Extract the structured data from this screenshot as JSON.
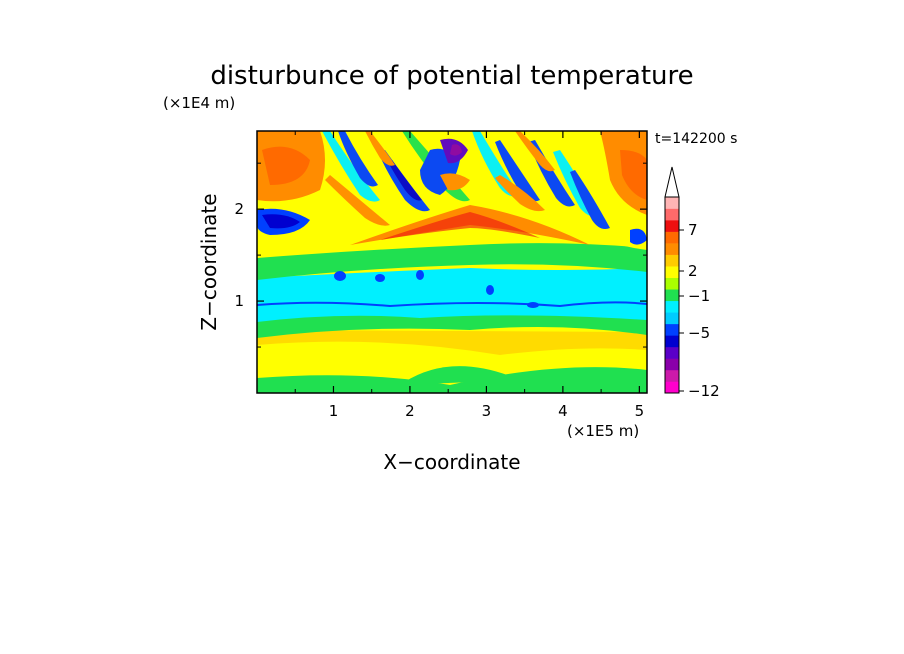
{
  "chart_data": {
    "type": "heatmap",
    "title": "disturbunce of potential temperature",
    "xlabel": "X−coordinate",
    "ylabel": "Z−coordinate",
    "x_scale_label": "(×1E5 m)",
    "y_scale_label": "(×1E4 m)",
    "time_label": "t=142200 s",
    "xlim": [
      0,
      5.1
    ],
    "ylim": [
      0,
      2.85
    ],
    "x_ticks": [
      1,
      2,
      3,
      4,
      5
    ],
    "y_ticks": [
      1,
      2
    ],
    "colorbar": {
      "tick_labels": [
        "7",
        "2",
        "−1",
        "−5",
        "−12"
      ],
      "colors_bottom_to_top": [
        "#ff00cc",
        "#cc1aaa",
        "#8a00aa",
        "#5a00c8",
        "#0000d0",
        "#0040ff",
        "#00ccff",
        "#00f0ff",
        "#20e050",
        "#aaff00",
        "#ffff00",
        "#ffcc00",
        "#ff8c00",
        "#ff6a00",
        "#ee1010",
        "#ff6a6a",
        "#ffb4b4"
      ],
      "extend": "max"
    },
    "field_description": "2-D contour field: upper layer shows tilted wave bands of warm (red/orange) and cold (blue/purple) anomalies; a cyan band near z~1.1; yellow/green near the surface."
  }
}
